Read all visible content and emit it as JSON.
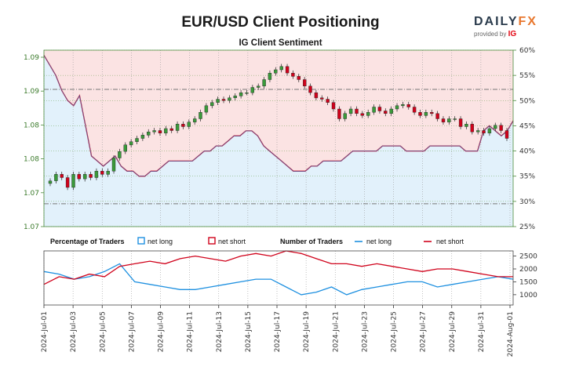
{
  "header": {
    "title": "EUR/USD Client Positioning",
    "subtitle": "IG Client Sentiment",
    "logo_main": "DAILY",
    "logo_fx": "FX",
    "logo_provided": "provided by",
    "logo_ig": "IG"
  },
  "colors": {
    "net_long": "#1e90e0",
    "net_short": "#d0021b",
    "short_zone": "#fbe3e3",
    "long_zone": "#e2f1fb",
    "candle_up": "#3a9a3a",
    "candle_down": "#d0021b"
  },
  "chart_data": [
    {
      "type": "line",
      "panel": "price",
      "y_left_ticks": [
        "1.09",
        "1.09",
        "1.08",
        "1.08",
        "1.07",
        "1.07"
      ],
      "y_right_ticks": [
        "60%",
        "55%",
        "50%",
        "45%",
        "40%",
        "35%",
        "30%",
        "25%"
      ],
      "price_range": [
        1.0665,
        1.0935
      ],
      "sentiment_range": [
        25,
        60
      ],
      "reference_lines": [
        1.0875,
        1.07
      ],
      "price_close": [
        1.0735,
        1.0745,
        1.074,
        1.0725,
        1.0745,
        1.0738,
        1.0745,
        1.074,
        1.075,
        1.0745,
        1.075,
        1.077,
        1.078,
        1.079,
        1.0795,
        1.08,
        1.0805,
        1.081,
        1.0812,
        1.0808,
        1.0815,
        1.0812,
        1.0822,
        1.0818,
        1.0825,
        1.083,
        1.084,
        1.085,
        1.0855,
        1.086,
        1.0858,
        1.0862,
        1.0865,
        1.087,
        1.087,
        1.0878,
        1.088,
        1.089,
        1.09,
        1.0905,
        1.091,
        1.09,
        1.0895,
        1.089,
        1.088,
        1.087,
        1.0862,
        1.086,
        1.0855,
        1.0845,
        1.083,
        1.0838,
        1.0845,
        1.0838,
        1.0835,
        1.084,
        1.0848,
        1.0842,
        1.0838,
        1.0845,
        1.085,
        1.0852,
        1.0848,
        1.084,
        1.0835,
        1.084,
        1.0838,
        1.083,
        1.0825,
        1.083,
        1.083,
        1.0818,
        1.0822,
        1.081,
        1.0812,
        1.0808,
        1.0815,
        1.082,
        1.0812,
        1.08
      ],
      "x_ticks": [
        "2024-Jul-01",
        "2024-Jul-03",
        "2024-Jul-05",
        "2024-Jul-07",
        "2024-Jul-09",
        "2024-Jul-11",
        "2024-Jul-13",
        "2024-Jul-15",
        "2024-Jul-17",
        "2024-Jul-19",
        "2024-Jul-21",
        "2024-Jul-23",
        "2024-Jul-25",
        "2024-Jul-27",
        "2024-Jul-29",
        "2024-Jul-31",
        "2024-Aug-01"
      ],
      "net_long_pct": [
        59,
        57,
        55,
        52,
        50,
        49,
        51,
        45,
        39,
        38,
        37,
        38,
        39,
        37,
        36,
        36,
        35,
        35,
        36,
        36,
        37,
        38,
        38,
        38,
        38,
        38,
        39,
        40,
        40,
        41,
        41,
        42,
        43,
        43,
        44,
        44,
        43,
        41,
        40,
        39,
        38,
        37,
        36,
        36,
        36,
        37,
        37,
        38,
        38,
        38,
        38,
        39,
        40,
        40,
        40,
        40,
        40,
        41,
        41,
        41,
        41,
        40,
        40,
        40,
        40,
        41,
        41,
        41,
        41,
        41,
        41,
        40,
        40,
        40,
        44,
        45,
        44,
        43,
        44,
        46
      ]
    },
    {
      "type": "line",
      "panel": "traders",
      "legend_left_title": "Percentage of Traders",
      "legend_left": [
        "net long",
        "net short"
      ],
      "legend_right_title": "Number of Traders",
      "legend_right": [
        "net long",
        "net short"
      ],
      "y_ticks": [
        "2500",
        "2000",
        "1500",
        "1000"
      ],
      "y_range": [
        600,
        2700
      ],
      "x_ticks": [
        "2024-Jul-01",
        "2024-Jul-03",
        "2024-Jul-05",
        "2024-Jul-07",
        "2024-Jul-09",
        "2024-Jul-11",
        "2024-Jul-13",
        "2024-Jul-15",
        "2024-Jul-17",
        "2024-Jul-19",
        "2024-Jul-21",
        "2024-Jul-23",
        "2024-Jul-25",
        "2024-Jul-27",
        "2024-Jul-29",
        "2024-Jul-31",
        "2024-Aug-01"
      ],
      "series": [
        {
          "name": "net long",
          "values": [
            1900,
            1800,
            1600,
            1700,
            1900,
            2200,
            1500,
            1400,
            1300,
            1200,
            1200,
            1300,
            1400,
            1500,
            1600,
            1600,
            1300,
            1000,
            1100,
            1300,
            1000,
            1200,
            1300,
            1400,
            1500,
            1500,
            1300,
            1400,
            1500,
            1600,
            1700,
            1600
          ]
        },
        {
          "name": "net short",
          "values": [
            1400,
            1700,
            1600,
            1800,
            1700,
            2100,
            2200,
            2300,
            2200,
            2400,
            2500,
            2400,
            2300,
            2500,
            2600,
            2500,
            2700,
            2600,
            2400,
            2200,
            2200,
            2100,
            2200,
            2100,
            2000,
            1900,
            2000,
            2000,
            1900,
            1800,
            1700,
            1700
          ]
        }
      ]
    }
  ]
}
